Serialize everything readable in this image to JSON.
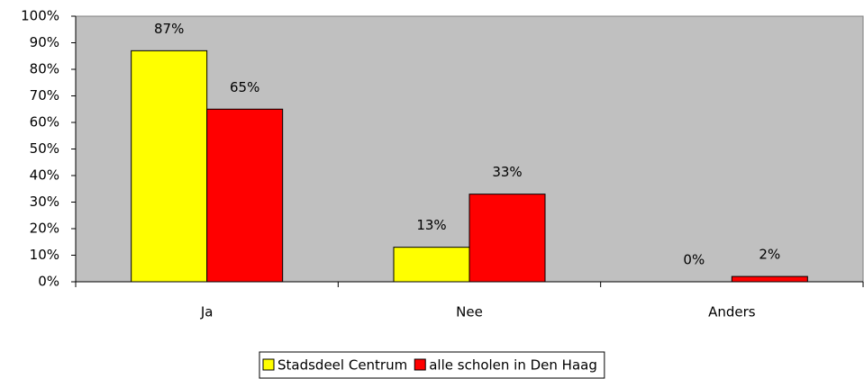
{
  "chart_data": {
    "type": "bar",
    "categories": [
      "Ja",
      "Nee",
      "Anders"
    ],
    "series": [
      {
        "name": "Stadsdeel Centrum",
        "color": "#ffff00",
        "values": [
          87,
          13,
          0
        ],
        "value_labels": [
          "87%",
          "13%",
          "0%"
        ]
      },
      {
        "name": "alle scholen in Den Haag",
        "color": "#ff0000",
        "values": [
          65,
          33,
          2
        ],
        "value_labels": [
          "65%",
          "33%",
          "2%"
        ]
      }
    ],
    "ylim": [
      0,
      100
    ],
    "yticks": [
      {
        "value": 0,
        "label": "0%"
      },
      {
        "value": 10,
        "label": "10%"
      },
      {
        "value": 20,
        "label": "20%"
      },
      {
        "value": 30,
        "label": "30%"
      },
      {
        "value": 40,
        "label": "40%"
      },
      {
        "value": 50,
        "label": "50%"
      },
      {
        "value": 60,
        "label": "60%"
      },
      {
        "value": 70,
        "label": "70%"
      },
      {
        "value": 80,
        "label": "80%"
      },
      {
        "value": 90,
        "label": "90%"
      },
      {
        "value": 100,
        "label": "100%"
      }
    ],
    "plot_background": "#c0c0c0",
    "legend": "bottom"
  }
}
